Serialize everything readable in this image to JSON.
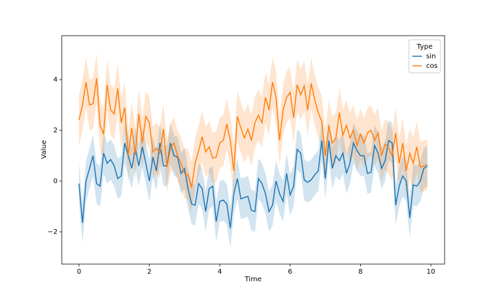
{
  "chart_data": {
    "type": "line",
    "xlabel": "Time",
    "ylabel": "Value",
    "legend": {
      "title": "Type",
      "loc": "upper right"
    },
    "grid": false,
    "xlim": [
      -0.49,
      10.39
    ],
    "ylim": [
      -3.27,
      5.73
    ],
    "xticks": [
      0,
      2,
      4,
      6,
      8,
      10
    ],
    "yticks": [
      {
        "value": -2,
        "label": "−2"
      },
      0,
      2,
      4
    ],
    "x": [
      0,
      0.1,
      0.2,
      0.3,
      0.4,
      0.5,
      0.6,
      0.7,
      0.8,
      0.9,
      1,
      1.1,
      1.2,
      1.3,
      1.4,
      1.5,
      1.6,
      1.7,
      1.8,
      1.9,
      2,
      2.1,
      2.2,
      2.3,
      2.4,
      2.5,
      2.6,
      2.7,
      2.8,
      2.9,
      3,
      3.1,
      3.2,
      3.3,
      3.4,
      3.5,
      3.6,
      3.7,
      3.8,
      3.9,
      4,
      4.1,
      4.2,
      4.3,
      4.4,
      4.5,
      4.6,
      4.7,
      4.8,
      4.9,
      5,
      5.1,
      5.2,
      5.3,
      5.4,
      5.5,
      5.6,
      5.7,
      5.8,
      5.9,
      6,
      6.1,
      6.2,
      6.3,
      6.4,
      6.5,
      6.6,
      6.7,
      6.8,
      6.9,
      7,
      7.1,
      7.2,
      7.3,
      7.4,
      7.5,
      7.6,
      7.7,
      7.8,
      7.9,
      8,
      8.1,
      8.2,
      8.3,
      8.4,
      8.5,
      8.6,
      8.7,
      8.8,
      8.9,
      9,
      9.1,
      9.2,
      9.3,
      9.4,
      9.5,
      9.6,
      9.7,
      9.8,
      9.9
    ],
    "series": [
      {
        "name": "sin",
        "color": "#1f77b4",
        "values": [
          -0.1,
          -1.65,
          0,
          0.5,
          1,
          -0.1,
          -0.2,
          1.1,
          0.7,
          0.85,
          0.6,
          0.1,
          0.2,
          1.5,
          1,
          0.5,
          1.3,
          0.6,
          1.35,
          0.7,
          0,
          0.95,
          0.4,
          1.5,
          0.6,
          0.6,
          1.5,
          1,
          0.95,
          0.3,
          0.5,
          -0.3,
          -0.9,
          -0.95,
          -0.1,
          -0.3,
          -1.2,
          -0.3,
          -0.2,
          -1.6,
          -0.8,
          -0.75,
          -0.9,
          -1.85,
          -0.5,
          0.1,
          -0.7,
          -0.65,
          -0.6,
          -1.15,
          -1.2,
          0.1,
          -0.1,
          -0.5,
          -1.2,
          -0.95,
          0,
          -0.5,
          -0.8,
          0.3,
          -0.55,
          -0.2,
          1.25,
          1.1,
          0.05,
          -0.05,
          0.05,
          0.25,
          0.4,
          1.6,
          0.1,
          1.6,
          0.5,
          1,
          0.8,
          1.1,
          0.3,
          0.7,
          1.5,
          1.2,
          1,
          1,
          0.3,
          0.35,
          1.4,
          1.1,
          0.5,
          0.8,
          1.6,
          1.5,
          -0.95,
          -0.2,
          0.2,
          0,
          -1.45,
          -0.15,
          -0.2,
          0,
          0.5,
          0.6
        ],
        "lower": [
          -0.9,
          -2.45,
          -0.8,
          -0.3,
          0.2,
          -0.9,
          -1,
          0.3,
          -0.1,
          0.05,
          -0.2,
          -0.7,
          -0.6,
          0.7,
          0.2,
          -0.3,
          0.5,
          -0.2,
          0.55,
          -0.1,
          -0.8,
          0.15,
          -0.4,
          0.7,
          -0.2,
          -0.2,
          0.7,
          0.2,
          0.15,
          -0.5,
          -0.3,
          -1.1,
          -1.7,
          -1.75,
          -0.9,
          -1.1,
          -2,
          -1.1,
          -1,
          -2.4,
          -1.6,
          -1.55,
          -1.7,
          -2.65,
          -1.3,
          -0.7,
          -1.5,
          -1.45,
          -1.4,
          -1.95,
          -2,
          -0.7,
          -0.9,
          -1.3,
          -2,
          -1.75,
          -0.8,
          -1.3,
          -1.6,
          -0.5,
          -1.35,
          -1,
          0.45,
          0.3,
          -0.75,
          -0.85,
          -0.75,
          -0.55,
          -0.4,
          0.8,
          -0.7,
          0.8,
          -0.3,
          0.2,
          0,
          0.3,
          -0.5,
          -0.1,
          0.7,
          0.4,
          0.2,
          0.2,
          -0.5,
          -0.45,
          0.6,
          0.3,
          -0.3,
          0,
          0.8,
          0.7,
          -1.75,
          -1,
          -0.6,
          -0.8,
          -2.25,
          -0.95,
          -1,
          -0.8,
          -0.3,
          -0.2
        ],
        "upper": [
          0.7,
          -0.85,
          0.8,
          1.3,
          1.8,
          0.7,
          0.6,
          1.9,
          1.5,
          1.65,
          1.4,
          0.9,
          1,
          2.3,
          1.8,
          1.3,
          2.1,
          1.4,
          2.15,
          1.5,
          0.8,
          1.75,
          1.2,
          2.3,
          1.4,
          1.4,
          2.3,
          1.8,
          1.75,
          1.1,
          1.3,
          0.5,
          -0.1,
          -0.15,
          0.7,
          0.5,
          -0.4,
          0.5,
          0.6,
          -0.8,
          0,
          0.05,
          -0.1,
          -1.05,
          0.3,
          0.9,
          0.1,
          0.15,
          0.2,
          -0.35,
          -0.4,
          0.9,
          0.7,
          0.3,
          -0.4,
          -0.15,
          0.8,
          0.3,
          0,
          1.1,
          0.25,
          0.6,
          2.05,
          1.9,
          0.85,
          0.75,
          0.85,
          1.05,
          1.2,
          2.4,
          0.9,
          2.4,
          1.3,
          1.8,
          1.6,
          1.9,
          1.1,
          1.5,
          2.3,
          2,
          1.8,
          1.8,
          1.1,
          1.15,
          2.2,
          1.9,
          1.3,
          1.6,
          2.4,
          2.3,
          -0.15,
          0.6,
          1,
          0.8,
          -0.65,
          0.65,
          0.6,
          0.8,
          1.3,
          1.4
        ]
      },
      {
        "name": "cos",
        "color": "#ff7f0e",
        "values": [
          2.4,
          3,
          3.9,
          3,
          3.05,
          4.05,
          2.2,
          1.85,
          3.8,
          2.8,
          2.65,
          3.65,
          2.3,
          2.9,
          1,
          2.1,
          1.05,
          2.65,
          1.5,
          2.55,
          2.3,
          1.15,
          1.3,
          1.1,
          2.05,
          0.55,
          1.3,
          1.5,
          1,
          0.7,
          0.3,
          0.25,
          -0.25,
          0.7,
          1.2,
          1.75,
          1.15,
          1.35,
          0.9,
          0.95,
          1.5,
          1.6,
          2.25,
          1.6,
          0.4,
          2.55,
          2.1,
          1.7,
          2.05,
          1.6,
          2.3,
          2.6,
          2.3,
          3.3,
          2.8,
          3.9,
          3.3,
          1.6,
          2.8,
          3.3,
          3.5,
          2.5,
          3.8,
          3.4,
          3.75,
          2.8,
          3.85,
          3.2,
          2.7,
          2.35,
          1,
          2.2,
          1.5,
          1.7,
          2.7,
          1.8,
          2.2,
          1.7,
          2,
          1.4,
          1.85,
          1.5,
          1.9,
          2,
          1.6,
          1.9,
          1,
          1.45,
          1.3,
          1,
          1.9,
          0.7,
          1.5,
          0.4,
          1.1,
          0.7,
          1.35,
          0.55,
          0.6,
          0.65
        ],
        "lower": [
          1.4,
          2,
          2.9,
          2,
          2.05,
          3.05,
          1.2,
          0.85,
          2.8,
          1.8,
          1.65,
          2.65,
          1.3,
          1.9,
          0,
          1.1,
          0.05,
          1.65,
          0.5,
          1.55,
          1.3,
          0.15,
          0.3,
          0.1,
          1.05,
          -0.45,
          0.3,
          0.5,
          0,
          -0.3,
          -0.7,
          -0.75,
          -1.25,
          -0.3,
          0.2,
          0.75,
          0.15,
          0.35,
          -0.1,
          -0.05,
          0.5,
          0.6,
          1.25,
          0.6,
          -0.6,
          1.55,
          1.1,
          0.7,
          1.05,
          0.6,
          1.3,
          1.6,
          1.3,
          2.3,
          1.8,
          2.9,
          2.3,
          0.6,
          1.8,
          2.3,
          2.5,
          1.5,
          2.8,
          2.4,
          2.75,
          1.8,
          2.85,
          2.2,
          1.7,
          1.35,
          0,
          1.2,
          0.5,
          0.7,
          1.7,
          0.8,
          1.2,
          0.7,
          1,
          0.4,
          0.85,
          0.5,
          0.9,
          1,
          0.6,
          0.9,
          0,
          0.45,
          0.3,
          0,
          0.9,
          -0.3,
          0.5,
          -0.6,
          0.1,
          -0.3,
          0.35,
          -0.45,
          -0.4,
          -0.35
        ],
        "upper": [
          3.4,
          4,
          4.9,
          4,
          4.05,
          5.05,
          3.2,
          2.85,
          4.8,
          3.8,
          3.65,
          4.65,
          3.3,
          3.9,
          2,
          3.1,
          2.05,
          3.65,
          2.5,
          3.55,
          3.3,
          2.15,
          2.3,
          2.1,
          3.05,
          1.55,
          2.3,
          2.5,
          2,
          1.7,
          1.3,
          1.25,
          0.75,
          1.7,
          2.2,
          2.75,
          2.15,
          2.35,
          1.9,
          1.95,
          2.5,
          2.6,
          3.25,
          2.6,
          1.4,
          3.55,
          3.1,
          2.7,
          3.05,
          2.6,
          3.3,
          3.6,
          3.3,
          4.3,
          3.8,
          4.9,
          4.3,
          2.6,
          3.8,
          4.3,
          4.5,
          3.5,
          4.8,
          4.4,
          4.75,
          3.8,
          4.85,
          4.2,
          3.7,
          3.35,
          2,
          3.2,
          2.5,
          2.7,
          3.7,
          2.8,
          3.2,
          2.7,
          3,
          2.4,
          2.85,
          2.5,
          2.9,
          3,
          2.6,
          2.9,
          2,
          2.45,
          2.3,
          2,
          2.9,
          1.7,
          2.5,
          1.4,
          2.1,
          1.7,
          2.35,
          1.55,
          1.6,
          1.65
        ]
      }
    ]
  }
}
